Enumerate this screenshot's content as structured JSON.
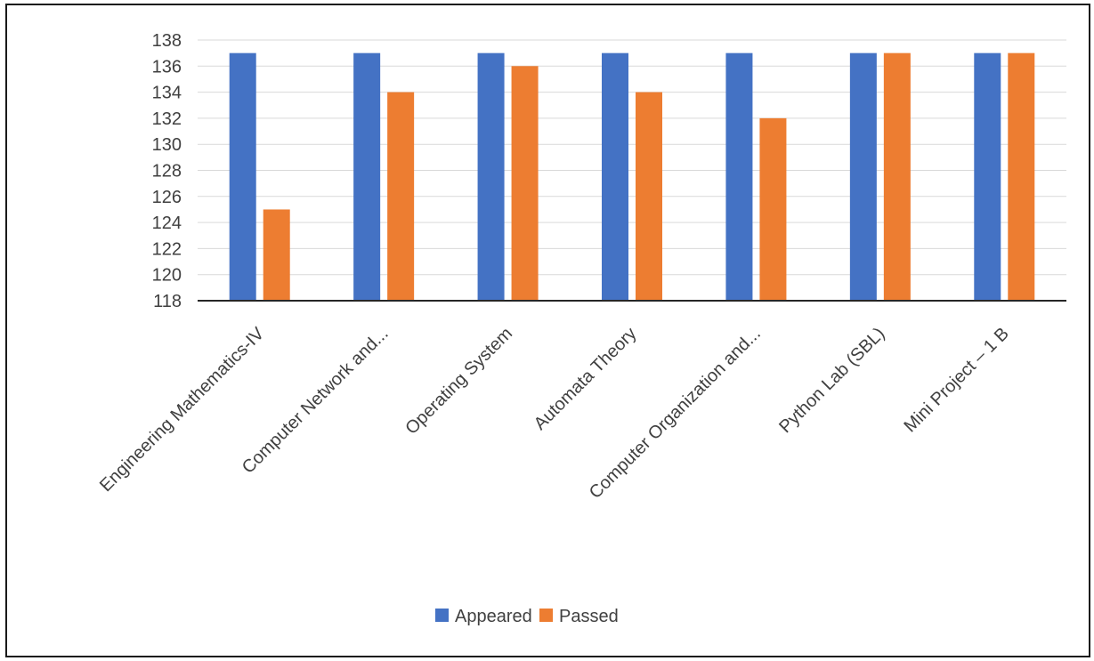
{
  "chart_data": {
    "type": "bar",
    "categories": [
      "Engineering Mathematics-IV",
      "Computer Network and...",
      "Operating System",
      "Automata Theory",
      "Computer Organization and...",
      "Python Lab (SBL)",
      "Mini Project – 1 B"
    ],
    "series": [
      {
        "name": "Appeared",
        "color": "#4472C4",
        "values": [
          137,
          137,
          137,
          137,
          137,
          137,
          137
        ]
      },
      {
        "name": "Passed",
        "color": "#ED7D31",
        "values": [
          125,
          134,
          136,
          134,
          132,
          137,
          137
        ]
      }
    ],
    "yticks": [
      "118",
      "120",
      "122",
      "124",
      "126",
      "128",
      "130",
      "132",
      "134",
      "136",
      "138"
    ],
    "ylim": [
      118,
      138
    ],
    "grid": true,
    "legend_position": "bottom"
  }
}
